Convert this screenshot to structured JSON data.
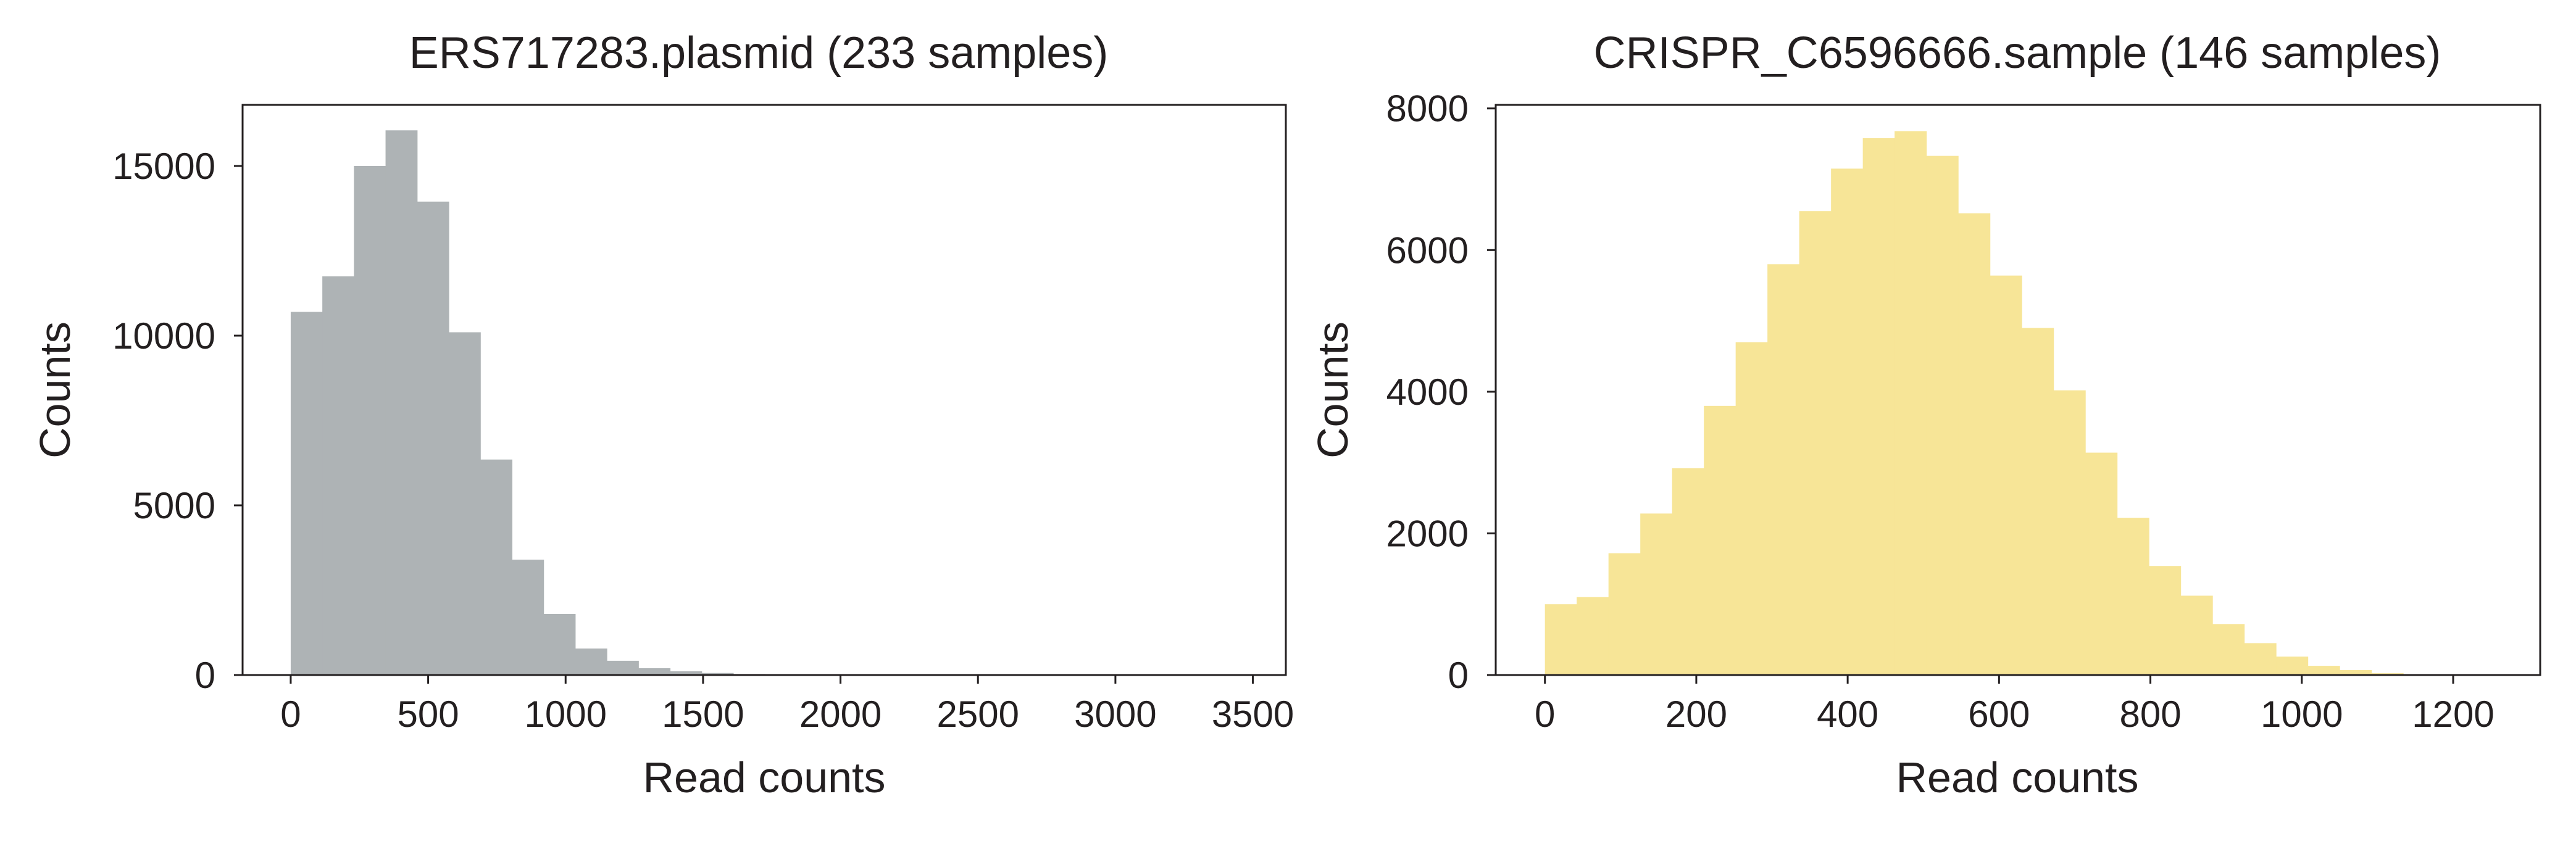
{
  "chart_data": [
    {
      "type": "bar",
      "title": "ERS717283.plasmid (233 samples)",
      "xlabel": "Read counts",
      "ylabel": "Counts",
      "color": "#aeb3b5",
      "xlim": [
        -175,
        3620
      ],
      "ylim": [
        0,
        16800
      ],
      "xticks": [
        0,
        500,
        1000,
        1500,
        2000,
        2500,
        3000,
        3500
      ],
      "xtick_labels": [
        "0",
        "500",
        "1000",
        "1500",
        "2000",
        "2500",
        "3000",
        "3500"
      ],
      "yticks": [
        0,
        5000,
        10000,
        15000
      ],
      "ytick_labels": [
        "0",
        "5000",
        "10000",
        "15000"
      ],
      "bin_edges": [
        0,
        115,
        230,
        345,
        460,
        575,
        690,
        805,
        920,
        1035,
        1150,
        1265,
        1380,
        1495,
        1610,
        1725
      ],
      "values": [
        10700,
        11750,
        15000,
        16050,
        13950,
        10100,
        6350,
        3400,
        1800,
        780,
        420,
        200,
        110,
        60,
        30
      ],
      "grid": false,
      "legend": "none"
    },
    {
      "type": "bar",
      "title": "CRISPR_C6596666.sample (146 samples)",
      "xlabel": "Read counts",
      "ylabel": "Counts",
      "color": "#f7e597",
      "xlim": [
        -65,
        1315
      ],
      "ylim": [
        0,
        8050
      ],
      "xticks": [
        0,
        200,
        400,
        600,
        800,
        1000,
        1200
      ],
      "xtick_labels": [
        "0",
        "200",
        "400",
        "600",
        "800",
        "1000",
        "1200"
      ],
      "yticks": [
        0,
        2000,
        4000,
        6000,
        8000
      ],
      "ytick_labels": [
        "0",
        "2000",
        "4000",
        "6000",
        "8000"
      ],
      "bin_edges": [
        0,
        42,
        84,
        126,
        168,
        210,
        252,
        294,
        336,
        378,
        420,
        462,
        504,
        546,
        588,
        630,
        672,
        714,
        756,
        798,
        840,
        882,
        924,
        966,
        1008,
        1050,
        1092,
        1134
      ],
      "values": [
        1000,
        1100,
        1720,
        2280,
        2920,
        3800,
        4700,
        5800,
        6550,
        7150,
        7580,
        7680,
        7330,
        6520,
        5640,
        4900,
        4020,
        3140,
        2220,
        1540,
        1120,
        720,
        450,
        260,
        130,
        70,
        25
      ],
      "grid": false,
      "legend": "none"
    }
  ]
}
